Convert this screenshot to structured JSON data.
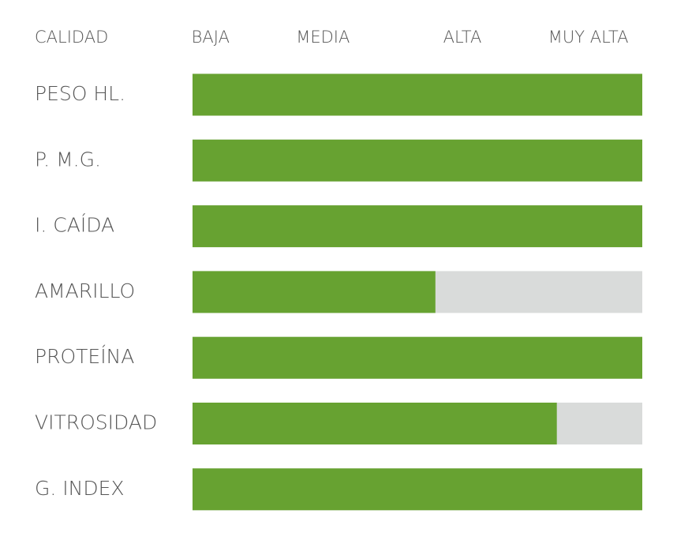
{
  "chart_data": {
    "type": "bar",
    "orientation": "horizontal",
    "y_label": "CALIDAD",
    "categories": [
      "PESO HL.",
      "P. M.G.",
      "I. CAÍDA",
      "AMARILLO",
      "PROTEÍNA",
      "VITROSIDAD",
      "G. INDEX"
    ],
    "values": [
      100,
      100,
      100,
      54,
      100,
      81,
      100
    ],
    "color": "#67a231",
    "track_color": "#d9dbda",
    "xlim": [
      0,
      100
    ],
    "xticks": [
      {
        "value": 4,
        "label": "BAJA"
      },
      {
        "value": 29,
        "label": "MEDIA"
      },
      {
        "value": 60,
        "label": "ALTA"
      },
      {
        "value": 88,
        "label": "MUY ALTA"
      }
    ],
    "grid": false
  }
}
